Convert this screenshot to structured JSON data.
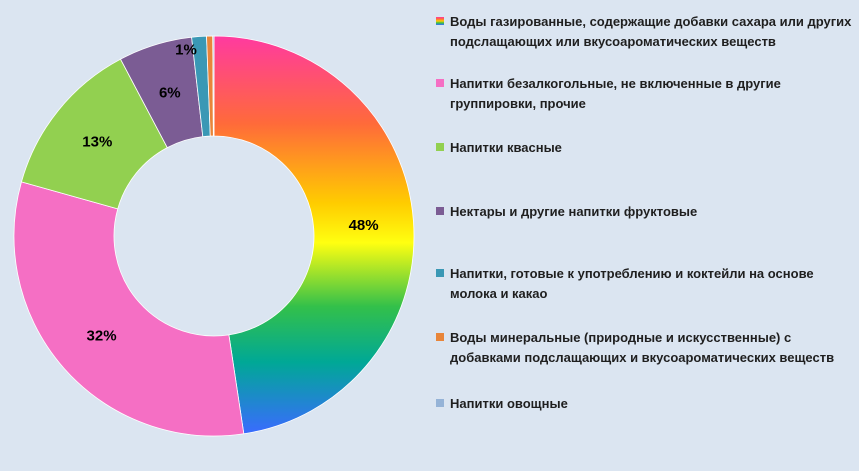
{
  "chart_data": {
    "type": "pie",
    "title": "",
    "series": [
      {
        "name": "Воды газированные, содержащие добавки сахара или других подслащающих или вкусоароматических веществ",
        "value": 48,
        "label": "48%",
        "color": "#ffd700"
      },
      {
        "name": "Напитки безалкогольные, не включенные в другие группировки, прочие",
        "value": 32,
        "label": "32%",
        "color": "#f56fc4"
      },
      {
        "name": "Напитки квасные",
        "value": 13,
        "label": "13%",
        "color": "#92d050"
      },
      {
        "name": "Нектары и другие напитки фруктовые",
        "value": 6,
        "label": "6%",
        "color": "#7b5c94"
      },
      {
        "name": "Напитки, готовые к употреблению и коктейли на основе молока и какао",
        "value": 1.2,
        "label": "1%",
        "color": "#3a98b5"
      },
      {
        "name": "Воды минеральные (природные и искусственные) с добавками подслащающих и вкусоароматических веществ",
        "value": 0.5,
        "label": "",
        "color": "#e8853a"
      },
      {
        "name": "Напитки овощные",
        "value": 0.1,
        "label": "",
        "color": "#95b3d7"
      }
    ],
    "legend_position": "right"
  }
}
